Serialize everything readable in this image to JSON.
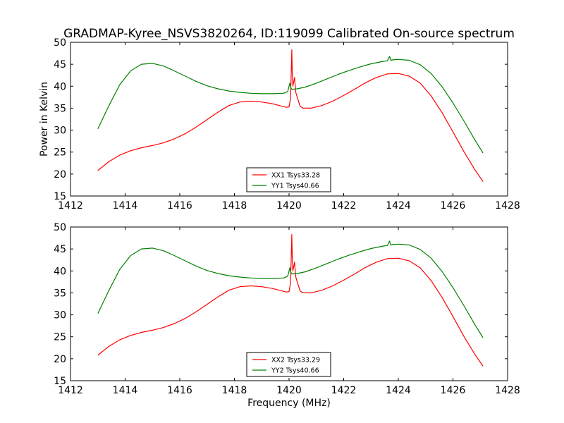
{
  "figure": {
    "title": "GRADMAP-Kyree_NSVS3820264, ID:119099 Calibrated On-source spectrum"
  },
  "chart_data": [
    {
      "type": "line",
      "title": "GRADMAP-Kyree_NSVS3820264, ID:119099 Calibrated On-source spectrum",
      "xlabel": "",
      "ylabel": "Power in Kelvin",
      "xlim": [
        1412,
        1428
      ],
      "ylim": [
        15,
        50
      ],
      "xticks": [
        "1412",
        "1414",
        "1416",
        "1418",
        "1420",
        "1422",
        "1424",
        "1426",
        "1428"
      ],
      "yticks": [
        "15",
        "20",
        "25",
        "30",
        "35",
        "40",
        "45",
        "50"
      ],
      "legend_position": "lower-center",
      "series": [
        {
          "name": "XX1 Tsys33.28",
          "color": "#ff0000",
          "x": [
            1413.0,
            1413.4,
            1413.8,
            1414.2,
            1414.6,
            1415.0,
            1415.4,
            1415.8,
            1416.2,
            1416.6,
            1417.0,
            1417.4,
            1417.8,
            1418.2,
            1418.6,
            1419.0,
            1419.4,
            1419.7,
            1419.9,
            1420.0,
            1420.05,
            1420.08,
            1420.1,
            1420.12,
            1420.14,
            1420.17,
            1420.2,
            1420.22,
            1420.25,
            1420.3,
            1420.35,
            1420.4,
            1420.5,
            1420.8,
            1421.2,
            1421.6,
            1422.0,
            1422.4,
            1422.8,
            1423.2,
            1423.6,
            1424.0,
            1424.4,
            1424.8,
            1425.2,
            1425.6,
            1426.0,
            1426.4,
            1426.8,
            1427.1
          ],
          "y": [
            20.8,
            22.8,
            24.3,
            25.3,
            26.0,
            26.5,
            27.1,
            28.0,
            29.2,
            30.7,
            32.4,
            34.1,
            35.6,
            36.4,
            36.6,
            36.4,
            36.0,
            35.5,
            35.2,
            35.3,
            37.0,
            43.0,
            48.3,
            43.0,
            40.0,
            41.0,
            42.0,
            40.5,
            38.5,
            37.5,
            36.5,
            35.5,
            35.0,
            35.0,
            35.6,
            36.6,
            37.9,
            39.3,
            40.8,
            42.0,
            42.8,
            42.9,
            42.3,
            40.7,
            37.8,
            34.0,
            29.6,
            25.1,
            21.0,
            18.3
          ]
        },
        {
          "name": "YY1 Tsys40.66",
          "color": "#008000",
          "x": [
            1413.0,
            1413.4,
            1413.8,
            1414.2,
            1414.6,
            1415.0,
            1415.4,
            1415.8,
            1416.2,
            1416.6,
            1417.0,
            1417.4,
            1417.8,
            1418.2,
            1418.6,
            1419.0,
            1419.4,
            1419.8,
            1419.95,
            1420.0,
            1420.03,
            1420.06,
            1420.1,
            1420.3,
            1420.6,
            1421.0,
            1421.4,
            1421.8,
            1422.2,
            1422.6,
            1423.0,
            1423.4,
            1423.6,
            1423.68,
            1423.72,
            1423.8,
            1424.0,
            1424.4,
            1424.8,
            1425.2,
            1425.6,
            1426.0,
            1426.4,
            1426.8,
            1427.1
          ],
          "y": [
            30.3,
            35.5,
            40.3,
            43.5,
            45.0,
            45.2,
            44.6,
            43.5,
            42.3,
            41.1,
            40.1,
            39.4,
            38.9,
            38.6,
            38.4,
            38.3,
            38.3,
            38.4,
            38.8,
            40.0,
            40.7,
            39.8,
            39.3,
            39.4,
            39.8,
            40.7,
            41.7,
            42.7,
            43.6,
            44.4,
            45.1,
            45.6,
            45.8,
            46.8,
            45.9,
            46.0,
            46.1,
            45.9,
            44.9,
            42.9,
            39.9,
            36.2,
            32.1,
            27.8,
            24.8
          ]
        }
      ]
    },
    {
      "type": "line",
      "title": "",
      "xlabel": "Frequency (MHz)",
      "ylabel": "",
      "xlim": [
        1412,
        1428
      ],
      "ylim": [
        15,
        50
      ],
      "xticks": [
        "1412",
        "1414",
        "1416",
        "1418",
        "1420",
        "1422",
        "1424",
        "1426",
        "1428"
      ],
      "yticks": [
        "15",
        "20",
        "25",
        "30",
        "35",
        "40",
        "45",
        "50"
      ],
      "legend_position": "lower-center",
      "series": [
        {
          "name": "XX2 Tsys33.29",
          "color": "#ff0000",
          "x": [
            1413.0,
            1413.4,
            1413.8,
            1414.2,
            1414.6,
            1415.0,
            1415.4,
            1415.8,
            1416.2,
            1416.6,
            1417.0,
            1417.4,
            1417.8,
            1418.2,
            1418.6,
            1419.0,
            1419.4,
            1419.7,
            1419.9,
            1420.0,
            1420.05,
            1420.08,
            1420.1,
            1420.12,
            1420.14,
            1420.17,
            1420.2,
            1420.22,
            1420.25,
            1420.3,
            1420.35,
            1420.4,
            1420.5,
            1420.8,
            1421.2,
            1421.6,
            1422.0,
            1422.4,
            1422.8,
            1423.2,
            1423.6,
            1424.0,
            1424.4,
            1424.8,
            1425.2,
            1425.6,
            1426.0,
            1426.4,
            1426.8,
            1427.1
          ],
          "y": [
            20.8,
            22.8,
            24.3,
            25.3,
            26.0,
            26.5,
            27.1,
            28.0,
            29.2,
            30.7,
            32.4,
            34.1,
            35.6,
            36.4,
            36.6,
            36.4,
            36.0,
            35.5,
            35.2,
            35.3,
            37.0,
            43.0,
            48.3,
            43.0,
            40.0,
            41.0,
            42.0,
            40.5,
            38.5,
            37.5,
            36.5,
            35.5,
            35.0,
            35.0,
            35.6,
            36.6,
            37.9,
            39.3,
            40.8,
            42.0,
            42.8,
            42.9,
            42.3,
            40.7,
            37.8,
            34.0,
            29.6,
            25.1,
            21.0,
            18.3
          ]
        },
        {
          "name": "YY2 Tsys40.66",
          "color": "#008000",
          "x": [
            1413.0,
            1413.4,
            1413.8,
            1414.2,
            1414.6,
            1415.0,
            1415.4,
            1415.8,
            1416.2,
            1416.6,
            1417.0,
            1417.4,
            1417.8,
            1418.2,
            1418.6,
            1419.0,
            1419.4,
            1419.8,
            1419.95,
            1420.0,
            1420.03,
            1420.06,
            1420.1,
            1420.3,
            1420.6,
            1421.0,
            1421.4,
            1421.8,
            1422.2,
            1422.6,
            1423.0,
            1423.4,
            1423.6,
            1423.68,
            1423.72,
            1423.8,
            1424.0,
            1424.4,
            1424.8,
            1425.2,
            1425.6,
            1426.0,
            1426.4,
            1426.8,
            1427.1
          ],
          "y": [
            30.3,
            35.5,
            40.3,
            43.5,
            45.0,
            45.2,
            44.6,
            43.5,
            42.3,
            41.1,
            40.1,
            39.4,
            38.9,
            38.6,
            38.4,
            38.3,
            38.3,
            38.4,
            38.8,
            40.0,
            40.7,
            39.8,
            39.3,
            39.4,
            39.8,
            40.7,
            41.7,
            42.7,
            43.6,
            44.4,
            45.1,
            45.6,
            45.8,
            46.8,
            45.9,
            46.0,
            46.1,
            45.9,
            44.9,
            42.9,
            39.9,
            36.2,
            32.1,
            27.8,
            24.8
          ]
        }
      ]
    }
  ]
}
